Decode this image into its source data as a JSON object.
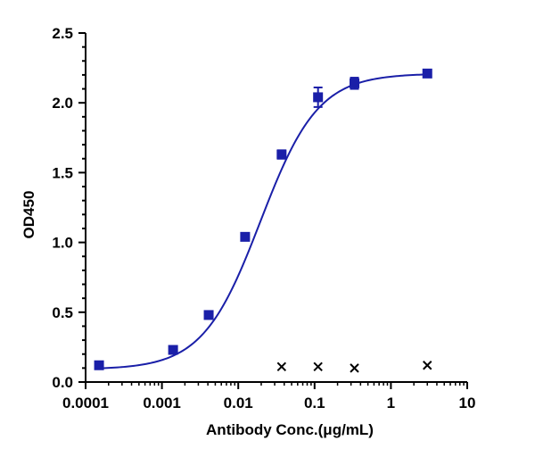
{
  "chart_data": {
    "type": "scatter",
    "title": "",
    "xlabel": "Antibody Conc.(μg/mL)",
    "ylabel": "OD450",
    "x_scale": "log",
    "xlim": [
      0.0001,
      10
    ],
    "ylim": [
      0,
      2.5
    ],
    "x_ticks": [
      "0.0001",
      "0.001",
      "0.01",
      "0.1",
      "1",
      "10"
    ],
    "y_ticks": [
      "0.0",
      "0.5",
      "1.0",
      "1.5",
      "2.0",
      "2.5"
    ],
    "grid": false,
    "legend": "none",
    "series": [
      {
        "marker": "square",
        "color": "#1a1fa8",
        "fit": "4PL curve",
        "x": [
          0.00015,
          0.0014,
          0.0041,
          0.0123,
          0.037,
          0.111,
          0.333,
          3.0
        ],
        "y": [
          0.12,
          0.23,
          0.48,
          1.04,
          1.63,
          2.04,
          2.14,
          2.21
        ],
        "error": [
          0.01,
          0.01,
          0.01,
          0.01,
          0.03,
          0.07,
          0.04,
          0.01
        ]
      },
      {
        "marker": "x",
        "color": "#000000",
        "x": [
          0.037,
          0.111,
          0.333,
          3.0
        ],
        "y": [
          0.11,
          0.11,
          0.1,
          0.12
        ]
      }
    ]
  }
}
